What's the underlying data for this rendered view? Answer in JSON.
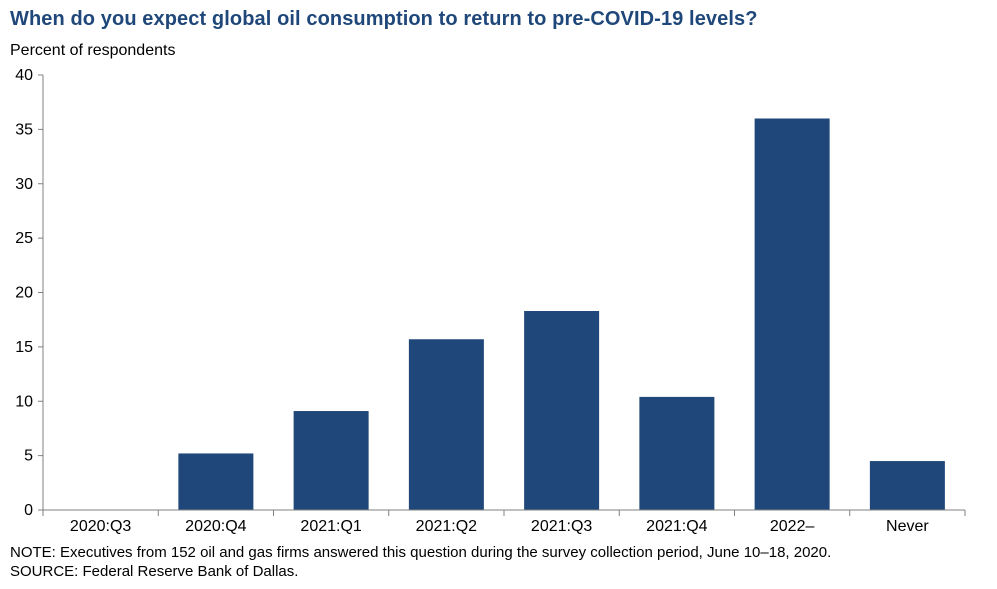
{
  "chart_data": {
    "type": "bar",
    "title": "When do you expect global oil consumption to return to pre-COVID-19  levels?",
    "ylabel": "Percent  of respondents",
    "xlabel": "",
    "categories": [
      "2020:Q3",
      "2020:Q4",
      "2021:Q1",
      "2021:Q2",
      "2021:Q3",
      "2021:Q4",
      "2022–",
      "Never"
    ],
    "values": [
      0,
      5.2,
      9.1,
      15.7,
      18.3,
      10.4,
      36.0,
      4.5
    ],
    "ylim": [
      0,
      40
    ],
    "yticks": [
      "0",
      "5",
      "10",
      "15",
      "20",
      "25",
      "30",
      "35",
      "40"
    ],
    "grid": false,
    "bar_color": "#1f477a"
  },
  "notes": {
    "note": "NOTE:  Executives  from  152  oil  and  gas  firms  answered  this  question  during  the  survey  collection  period,  June  10–18,  2020.",
    "source": "SOURCE:  Federal  Reserve  Bank  of  Dallas."
  }
}
